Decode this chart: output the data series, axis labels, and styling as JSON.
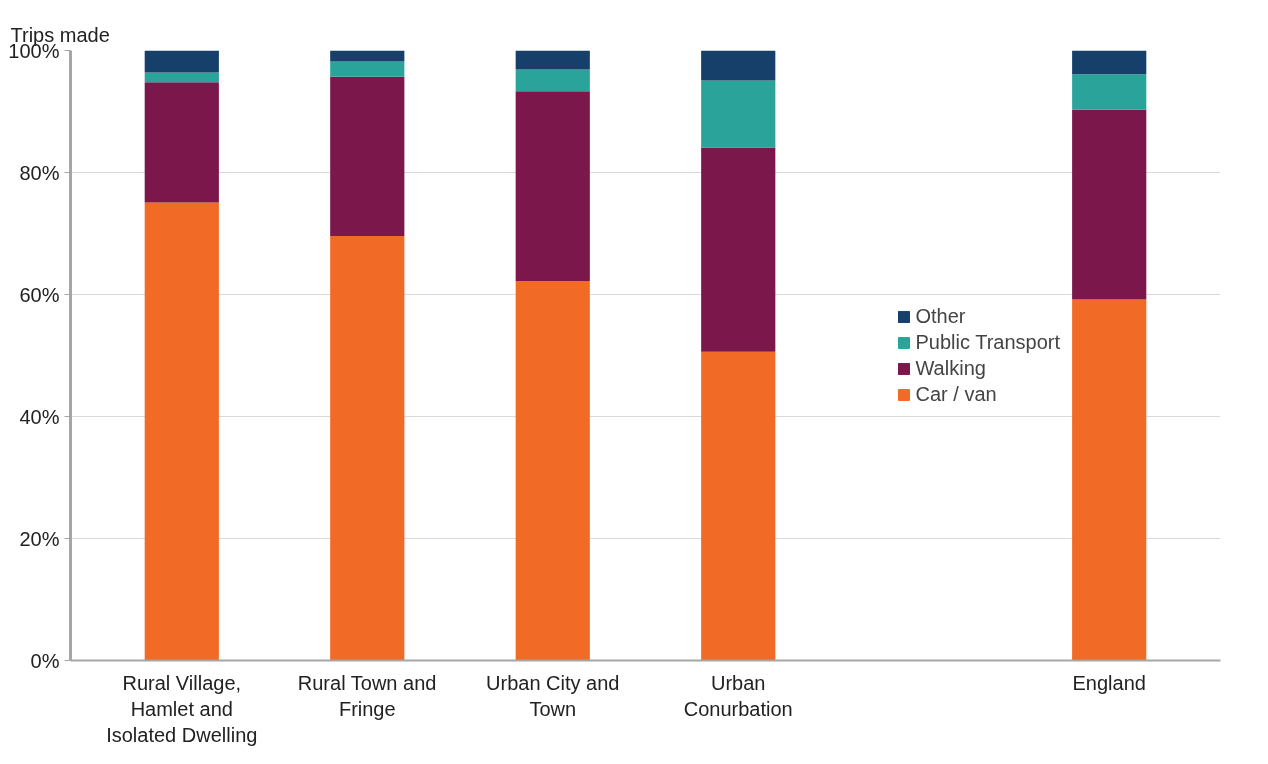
{
  "chart_data": {
    "type": "bar",
    "stacked": true,
    "ylabel": "Trips made",
    "categories": [
      "Rural Village,\nHamlet and\nIsolated Dwelling",
      "Rural Town and\nFringe",
      "Urban City and\nTown",
      "Urban\nConurbation",
      null,
      "England"
    ],
    "series": [
      {
        "name": "Car / van",
        "color": "#f26b26",
        "values": [
          75.1,
          69.6,
          62.2,
          50.6,
          null,
          59.2
        ]
      },
      {
        "name": "Walking",
        "color": "#7b174a",
        "values": [
          19.7,
          26.1,
          31.1,
          33.5,
          null,
          31.1
        ]
      },
      {
        "name": "Public Transport",
        "color": "#2aa39a",
        "values": [
          1.6,
          2.5,
          3.6,
          11.0,
          null,
          5.8
        ]
      },
      {
        "name": "Other",
        "color": "#163f6a",
        "values": [
          3.6,
          1.8,
          3.1,
          4.9,
          null,
          3.9
        ]
      }
    ],
    "ylim": [
      0,
      100
    ],
    "yticks": [
      {
        "value": 0,
        "label": "0%"
      },
      {
        "value": 20,
        "label": "20%"
      },
      {
        "value": 40,
        "label": "40%"
      },
      {
        "value": 60,
        "label": "60%"
      },
      {
        "value": 80,
        "label": "80%"
      },
      {
        "value": 100,
        "label": "100%"
      }
    ],
    "grid": "y",
    "legend": "right"
  }
}
